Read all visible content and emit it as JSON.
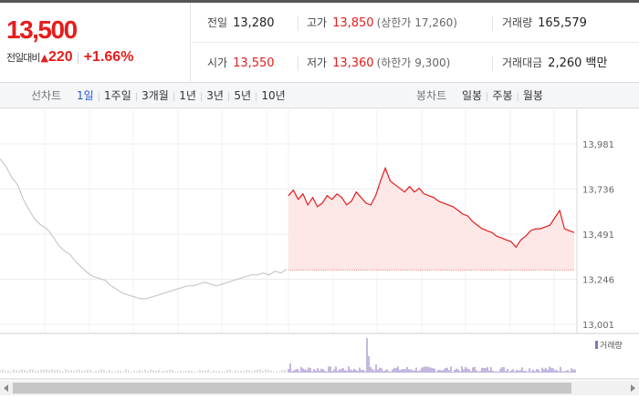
{
  "quote": {
    "price": "13,500",
    "change_label": "전일대비",
    "change_amount": "220",
    "change_pct": "+1.66%"
  },
  "stats": {
    "prev_close_label": "전일",
    "prev_close": "13,280",
    "high_label": "고가",
    "high": "13,850",
    "upper_limit_label": "(상한가",
    "upper_limit": "17,260)",
    "volume_label": "거래량",
    "volume": "165,579",
    "open_label": "시가",
    "open": "13,550",
    "low_label": "저가",
    "low": "13,360",
    "lower_limit_label": "(하한가",
    "lower_limit": "9,300)",
    "turnover_label": "거래대금",
    "turnover": "2,260 백만"
  },
  "tabs": {
    "line_label": "선차트",
    "line": [
      "1일",
      "1주일",
      "3개월",
      "1년",
      "3년",
      "5년",
      "10년"
    ],
    "line_active": 0,
    "candle_label": "봉차트",
    "candle": [
      "일봉",
      "주봉",
      "월봉"
    ]
  },
  "colors": {
    "up": "#e41d1d",
    "prev_line": "#c8c8c8",
    "area": "#fde3e3",
    "volume_bar": "#8a6fbf"
  },
  "chart_data": {
    "type": "line",
    "y_ticks": [
      13981,
      13736,
      13491,
      13246,
      13001
    ],
    "ylim": [
      13001,
      13981
    ],
    "volume_legend": "거래량",
    "series": [
      {
        "values": [
          13900,
          13860,
          13800,
          13760,
          13680,
          13620,
          13570,
          13540,
          13520,
          13480,
          13430,
          13400,
          13380,
          13340,
          13310,
          13280,
          13260,
          13250,
          13240,
          13210,
          13190,
          13170,
          13160,
          13150,
          13140,
          13140,
          13150,
          13160,
          13170,
          13180,
          13190,
          13200,
          13210,
          13210,
          13220,
          13230,
          13220,
          13210,
          13220,
          13230,
          13240,
          13250,
          13260,
          13270,
          13270,
          13280,
          13270,
          13290,
          13280,
          13300
        ]
      },
      {
        "values": [
          13700,
          13730,
          13680,
          13710,
          13650,
          13690,
          13640,
          13660,
          13700,
          13680,
          13710,
          13690,
          13650,
          13670,
          13720,
          13690,
          13660,
          13650,
          13700,
          13780,
          13850,
          13780,
          13760,
          13740,
          13720,
          13750,
          13720,
          13740,
          13710,
          13700,
          13690,
          13670,
          13660,
          13650,
          13640,
          13620,
          13600,
          13590,
          13560,
          13540,
          13520,
          13510,
          13500,
          13480,
          13470,
          13460,
          13450,
          13420,
          13460,
          13480,
          13510,
          13520,
          13520,
          13530,
          13540,
          13580,
          13620,
          13520,
          13510,
          13500
        ]
      }
    ]
  }
}
